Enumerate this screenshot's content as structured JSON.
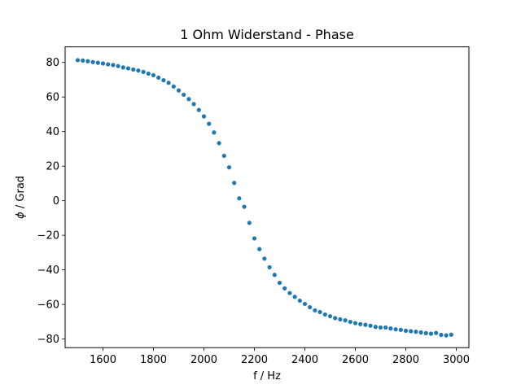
{
  "chart_data": {
    "type": "scatter",
    "title": "1 Ohm Widerstand - Phase",
    "xlabel": "f / Hz",
    "ylabel_symbol": "ϕ",
    "ylabel_rest": " / Grad",
    "xlim": [
      1450,
      3050
    ],
    "ylim": [
      -85,
      89
    ],
    "xticks": [
      1600,
      1800,
      2000,
      2200,
      2400,
      2600,
      2800,
      3000
    ],
    "xtick_labels": [
      "1600",
      "1800",
      "2000",
      "2200",
      "2400",
      "2600",
      "2800",
      "3000"
    ],
    "yticks": [
      -80,
      -60,
      -40,
      -20,
      0,
      20,
      40,
      60,
      80
    ],
    "ytick_labels": [
      "−80",
      "−60",
      "−40",
      "−20",
      "0",
      "20",
      "40",
      "60",
      "80"
    ],
    "marker_color": "#1f77b4",
    "series": [
      {
        "name": "Phase",
        "x": [
          1500,
          1520,
          1540,
          1560,
          1580,
          1600,
          1620,
          1640,
          1660,
          1680,
          1700,
          1720,
          1740,
          1760,
          1780,
          1800,
          1820,
          1840,
          1860,
          1880,
          1900,
          1920,
          1940,
          1960,
          1980,
          2000,
          2020,
          2040,
          2060,
          2080,
          2100,
          2120,
          2140,
          2160,
          2180,
          2200,
          2220,
          2240,
          2260,
          2280,
          2300,
          2320,
          2340,
          2360,
          2380,
          2400,
          2420,
          2440,
          2460,
          2480,
          2500,
          2520,
          2540,
          2560,
          2580,
          2600,
          2620,
          2640,
          2660,
          2680,
          2700,
          2720,
          2740,
          2760,
          2780,
          2800,
          2820,
          2840,
          2860,
          2880,
          2900,
          2920,
          2940,
          2960,
          2980
        ],
        "y": [
          81.3,
          81.1,
          80.7,
          80.2,
          79.8,
          79.4,
          78.9,
          78.5,
          77.9,
          77.1,
          76.6,
          75.9,
          75.3,
          74.5,
          73.5,
          72.6,
          71.2,
          69.7,
          68.2,
          66.1,
          63.8,
          61.3,
          58.8,
          55.9,
          52.5,
          48.8,
          44.5,
          39.5,
          33.3,
          26.0,
          19.3,
          10.3,
          1.4,
          -3.5,
          -12.8,
          -21.8,
          -28.0,
          -33.5,
          -38.5,
          -42.9,
          -47.5,
          -50.7,
          -53.4,
          -55.6,
          -57.8,
          -59.7,
          -61.6,
          -63.4,
          -64.4,
          -65.8,
          -66.8,
          -67.9,
          -68.6,
          -69.2,
          -70.1,
          -70.8,
          -71.4,
          -71.8,
          -72.3,
          -73.0,
          -73.3,
          -73.3,
          -73.9,
          -74.4,
          -74.7,
          -75.2,
          -75.5,
          -75.8,
          -76.2,
          -76.6,
          -76.9,
          -76.5,
          -77.6,
          -77.9,
          -77.5
        ]
      }
    ]
  }
}
